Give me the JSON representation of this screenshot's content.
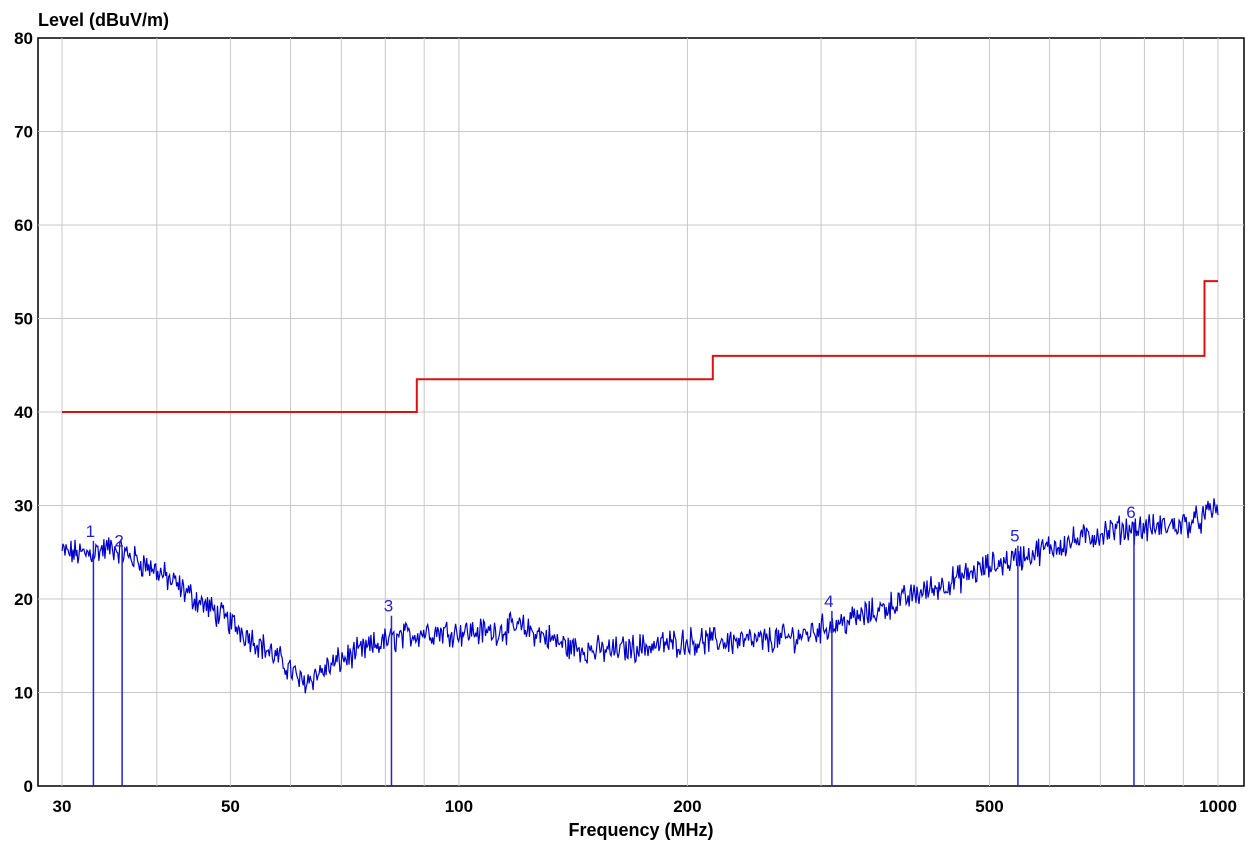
{
  "chart_data": {
    "type": "line",
    "title": "",
    "ylabel": "Level (dBuV/m)",
    "xlabel": "Frequency (MHz)",
    "x_scale": "log",
    "xlim": [
      30,
      1000
    ],
    "ylim": [
      0,
      80
    ],
    "grid": true,
    "x_major_ticks": [
      30,
      50,
      100,
      200,
      500,
      1000
    ],
    "x_minor_grid": [
      40,
      60,
      70,
      80,
      90,
      300,
      400,
      600,
      700,
      800,
      900
    ],
    "y_ticks": [
      0,
      10,
      20,
      30,
      40,
      50,
      60,
      70,
      80
    ],
    "colors": {
      "measurement": "#0000cc",
      "limit": "#e01010",
      "grid": "#c8c8c8",
      "markers": "#2222dd"
    },
    "series": [
      {
        "key": "limit",
        "type": "step",
        "x": [
          30,
          88,
          88,
          216,
          216,
          960,
          960,
          1000
        ],
        "y": [
          40,
          40,
          43.5,
          43.5,
          46,
          46,
          54,
          54
        ]
      },
      {
        "key": "measurement",
        "type": "noisy-line",
        "noise_db": 1.2,
        "x": [
          30,
          32,
          35,
          37,
          40,
          45,
          50,
          55,
          60,
          62,
          70,
          80,
          90,
          100,
          110,
          120,
          130,
          140,
          150,
          160,
          170,
          180,
          200,
          220,
          250,
          280,
          300,
          350,
          400,
          450,
          500,
          550,
          600,
          700,
          750,
          800,
          900,
          950,
          1000
        ],
        "y": [
          25.0,
          24.8,
          25.5,
          24.5,
          23.0,
          20.0,
          17.5,
          15.0,
          12.5,
          11.0,
          13.5,
          15.5,
          16.5,
          16.5,
          16.5,
          17.0,
          16.0,
          14.8,
          14.5,
          14.5,
          14.8,
          15.0,
          15.5,
          15.5,
          15.5,
          16.0,
          16.8,
          18.5,
          20.5,
          22.0,
          23.5,
          24.5,
          25.5,
          27.0,
          27.5,
          27.5,
          28.0,
          28.5,
          30.0
        ]
      }
    ],
    "markers": [
      {
        "label": "1",
        "x": 33.0,
        "y": 26.0
      },
      {
        "label": "2",
        "x": 36.0,
        "y": 25.0
      },
      {
        "label": "3",
        "x": 81.5,
        "y": 18.0
      },
      {
        "label": "4",
        "x": 310.0,
        "y": 18.5
      },
      {
        "label": "5",
        "x": 545.0,
        "y": 25.5
      },
      {
        "label": "6",
        "x": 775.0,
        "y": 28.0
      }
    ]
  }
}
